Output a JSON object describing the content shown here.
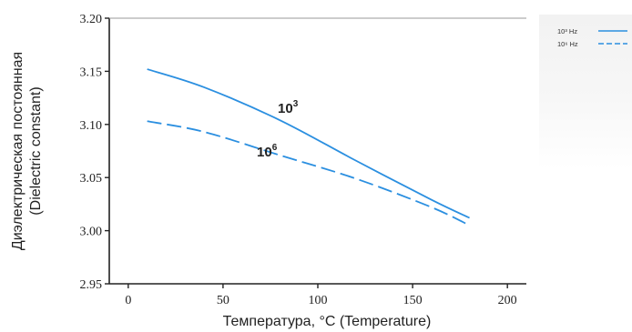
{
  "chart_data": {
    "type": "line",
    "xlabel": "Температура, °C (Temperature)",
    "ylabel": [
      "Диэлектрическая постоянная",
      "(Dielectric constant)"
    ],
    "xlim": [
      -10,
      210
    ],
    "ylim": [
      2.95,
      3.2
    ],
    "x_ticks": [
      "0",
      "50",
      "100",
      "150",
      "200"
    ],
    "y_ticks": [
      "2.95",
      "3.00",
      "3.05",
      "3.10",
      "3.15",
      "3.20"
    ],
    "grid": false,
    "legend_position": "top-right",
    "series": [
      {
        "name": "10³ Hz",
        "inline_label": "10",
        "inline_label_exp": "3",
        "style": "solid",
        "color": "#2b8fe0",
        "points": [
          [
            10,
            3.152
          ],
          [
            40,
            3.135
          ],
          [
            80,
            3.104
          ],
          [
            120,
            3.066
          ],
          [
            160,
            3.029
          ],
          [
            180,
            3.012
          ]
        ]
      },
      {
        "name": "10⁶ Hz",
        "inline_label": "10",
        "inline_label_exp": "6",
        "style": "dashed",
        "color": "#2b8fe0",
        "points": [
          [
            10,
            3.103
          ],
          [
            40,
            3.093
          ],
          [
            80,
            3.071
          ],
          [
            120,
            3.049
          ],
          [
            160,
            3.022
          ],
          [
            180,
            3.005
          ]
        ]
      }
    ]
  }
}
